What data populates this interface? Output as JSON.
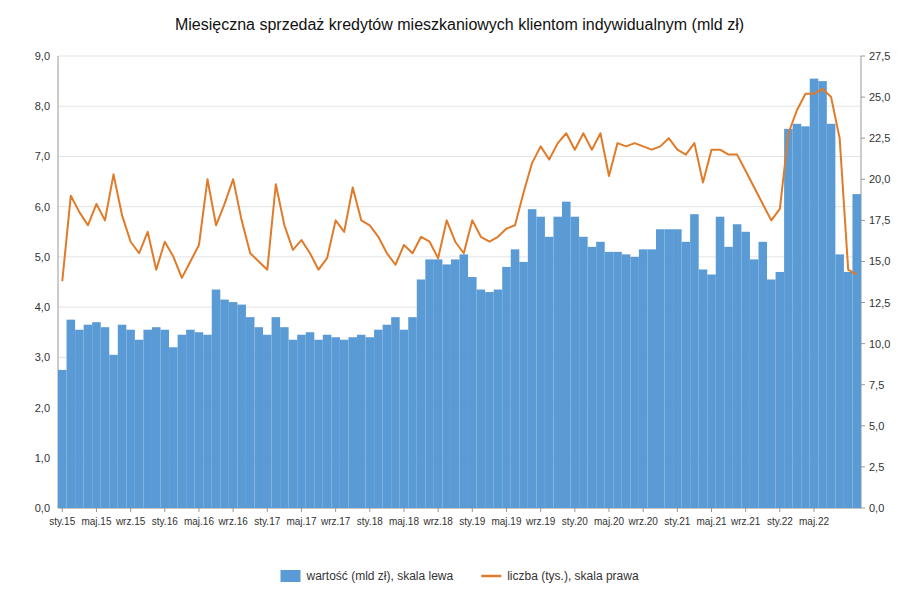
{
  "chart_data": {
    "type": "bar",
    "title": "Miesięczna sprzedaż kredytów mieszkaniowych klientom indywidualnym (mld zł)",
    "categories": [
      "sty.15",
      null,
      null,
      null,
      "maj.15",
      null,
      null,
      null,
      "wrz.15",
      null,
      null,
      null,
      "sty.16",
      null,
      null,
      null,
      "maj.16",
      null,
      null,
      null,
      "wrz.16",
      null,
      null,
      null,
      "sty.17",
      null,
      null,
      null,
      "maj.17",
      null,
      null,
      null,
      "wrz.17",
      null,
      null,
      null,
      "sty.18",
      null,
      null,
      null,
      "maj.18",
      null,
      null,
      null,
      "wrz.18",
      null,
      null,
      null,
      "sty.19",
      null,
      null,
      null,
      "maj.19",
      null,
      null,
      null,
      "wrz.19",
      null,
      null,
      null,
      "sty.20",
      null,
      null,
      null,
      "maj.20",
      null,
      null,
      null,
      "wrz.20",
      null,
      null,
      null,
      "sty.21",
      null,
      null,
      null,
      "maj.21",
      null,
      null,
      null,
      "wrz.21",
      null,
      null,
      null,
      "sty.22",
      null,
      null,
      null,
      "maj.22",
      null,
      null,
      null,
      null,
      null
    ],
    "series": [
      {
        "name": "wartość (mld zł), skala lewa",
        "type": "bar",
        "color": "#5B9BD5",
        "values": [
          2.75,
          3.75,
          3.55,
          3.65,
          3.7,
          3.6,
          3.05,
          3.65,
          3.55,
          3.35,
          3.55,
          3.6,
          3.55,
          3.2,
          3.45,
          3.55,
          3.5,
          3.45,
          4.35,
          4.15,
          4.1,
          4.05,
          3.8,
          3.6,
          3.45,
          3.8,
          3.6,
          3.35,
          3.45,
          3.5,
          3.35,
          3.45,
          3.4,
          3.35,
          3.4,
          3.45,
          3.4,
          3.55,
          3.65,
          3.8,
          3.55,
          3.8,
          4.55,
          4.95,
          4.95,
          4.85,
          4.95,
          5.05,
          4.6,
          4.35,
          4.3,
          4.35,
          4.8,
          5.15,
          4.9,
          5.95,
          5.8,
          5.4,
          5.8,
          6.1,
          5.8,
          5.4,
          5.2,
          5.3,
          5.1,
          5.1,
          5.05,
          5.0,
          5.15,
          5.15,
          5.55,
          5.55,
          5.55,
          5.3,
          5.85,
          4.75,
          4.65,
          5.8,
          5.2,
          5.65,
          5.5,
          4.95,
          5.3,
          4.55,
          4.7,
          7.55,
          7.65,
          7.6,
          8.55,
          8.5,
          7.65,
          5.05,
          4.7,
          6.25
        ]
      },
      {
        "name": "liczba (tys.), skala prawa",
        "type": "line",
        "color": "#E07B2A",
        "axis": "y2",
        "values": [
          13.8,
          19.0,
          18.0,
          17.2,
          18.5,
          17.5,
          20.3,
          17.8,
          16.2,
          15.5,
          16.8,
          14.5,
          16.2,
          15.3,
          14.0,
          15.0,
          16.0,
          20.0,
          17.2,
          18.5,
          20.0,
          17.5,
          15.5,
          15.0,
          14.5,
          19.7,
          17.2,
          15.7,
          16.3,
          15.5,
          14.5,
          15.2,
          17.5,
          16.8,
          19.5,
          17.5,
          17.2,
          16.5,
          15.5,
          14.8,
          16.0,
          15.5,
          16.5,
          16.2,
          15.2,
          17.5,
          16.2,
          15.5,
          17.5,
          16.5,
          16.2,
          16.5,
          17.0,
          17.2,
          19.2,
          21.0,
          22.0,
          21.2,
          22.2,
          22.8,
          21.8,
          22.8,
          21.8,
          22.8,
          20.2,
          22.2,
          22.0,
          22.2,
          22.0,
          21.8,
          22.0,
          22.5,
          21.8,
          21.5,
          22.2,
          19.8,
          21.8,
          21.8,
          21.5,
          21.5,
          20.5,
          19.5,
          18.5,
          17.5,
          18.2,
          22.8,
          24.2,
          25.2,
          25.2,
          25.5,
          25.0,
          22.5,
          14.5,
          14.2
        ]
      }
    ],
    "ylim": [
      0,
      9.0
    ],
    "yticks": [
      {
        "value": 0.0,
        "label": "0,0"
      },
      {
        "value": 1.0,
        "label": "1,0"
      },
      {
        "value": 2.0,
        "label": "2,0"
      },
      {
        "value": 3.0,
        "label": "3,0"
      },
      {
        "value": 4.0,
        "label": "4,0"
      },
      {
        "value": 5.0,
        "label": "5,0"
      },
      {
        "value": 6.0,
        "label": "6,0"
      },
      {
        "value": 7.0,
        "label": "7,0"
      },
      {
        "value": 8.0,
        "label": "8,0"
      },
      {
        "value": 9.0,
        "label": "9,0"
      }
    ],
    "y2lim": [
      0,
      27.5
    ],
    "y2ticks": [
      {
        "value": 0.0,
        "label": "0,0"
      },
      {
        "value": 2.5,
        "label": "2,5"
      },
      {
        "value": 5.0,
        "label": "5,0"
      },
      {
        "value": 7.5,
        "label": "7,5"
      },
      {
        "value": 10.0,
        "label": "10,0"
      },
      {
        "value": 12.5,
        "label": "12,5"
      },
      {
        "value": 15.0,
        "label": "15,0"
      },
      {
        "value": 17.5,
        "label": "17,5"
      },
      {
        "value": 20.0,
        "label": "20,0"
      },
      {
        "value": 22.5,
        "label": "22,5"
      },
      {
        "value": 25.0,
        "label": "25,0"
      },
      {
        "value": 27.5,
        "label": "27,5"
      }
    ],
    "grid": true,
    "legend": "bottom"
  }
}
